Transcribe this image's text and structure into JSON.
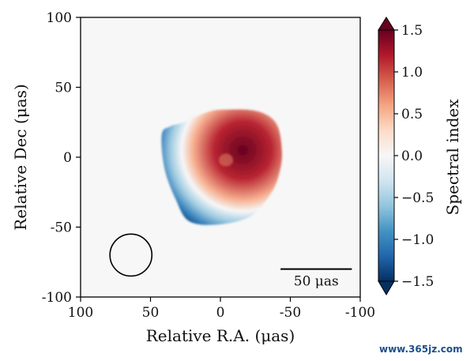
{
  "chart_data": {
    "type": "heatmap",
    "xlabel": "Relative R.A. (μas)",
    "ylabel": "Relative Dec (μas)",
    "xlim": [
      100,
      -100
    ],
    "ylim": [
      -100,
      100
    ],
    "x_ticks": [
      {
        "value": 100,
        "label": "100"
      },
      {
        "value": 50,
        "label": "50"
      },
      {
        "value": 0,
        "label": "0"
      },
      {
        "value": -50,
        "label": "-50"
      },
      {
        "value": -100,
        "label": "-100"
      }
    ],
    "y_ticks": [
      {
        "value": 100,
        "label": "100"
      },
      {
        "value": 50,
        "label": "50"
      },
      {
        "value": 0,
        "label": "0"
      },
      {
        "value": -50,
        "label": "-50"
      },
      {
        "value": -100,
        "label": "-100"
      }
    ],
    "colorbar": {
      "label": "Spectral index",
      "min": -1.5,
      "max": 1.5,
      "ticks": [
        {
          "value": 1.5,
          "label": "1.5"
        },
        {
          "value": 1.0,
          "label": "1.0"
        },
        {
          "value": 0.5,
          "label": "0.5"
        },
        {
          "value": 0.0,
          "label": "0.0"
        },
        {
          "value": -0.5,
          "label": "−0.5"
        },
        {
          "value": -1.0,
          "label": "−1.0"
        },
        {
          "value": -1.5,
          "label": "−1.5"
        }
      ],
      "colors": [
        "#053061",
        "#2166ac",
        "#4393c3",
        "#92c5de",
        "#d1e5f0",
        "#f7f7f7",
        "#fddbc7",
        "#f4a582",
        "#d6604d",
        "#b2182b",
        "#67001f"
      ]
    },
    "blob": {
      "outline": [
        [
          10,
          32
        ],
        [
          26,
          25
        ],
        [
          36,
          22
        ],
        [
          42,
          16
        ],
        [
          40,
          -8
        ],
        [
          32,
          -30
        ],
        [
          22,
          -46
        ],
        [
          0,
          -48
        ],
        [
          -22,
          -42
        ],
        [
          -36,
          -26
        ],
        [
          -42,
          -12
        ],
        [
          -44,
          4
        ],
        [
          -40,
          24
        ],
        [
          -26,
          33
        ],
        [
          -2,
          34
        ]
      ],
      "peak_index": 1.5,
      "edge_index": -1.5,
      "peak_center": [
        -16,
        5
      ]
    },
    "beam": {
      "x": 64,
      "y": -70,
      "diameter": 30
    },
    "scale_bar": {
      "x_start": -43,
      "x_end": -94,
      "y": -80,
      "label": "50 μas",
      "length": 50
    }
  },
  "watermark": "www.365jz.com"
}
